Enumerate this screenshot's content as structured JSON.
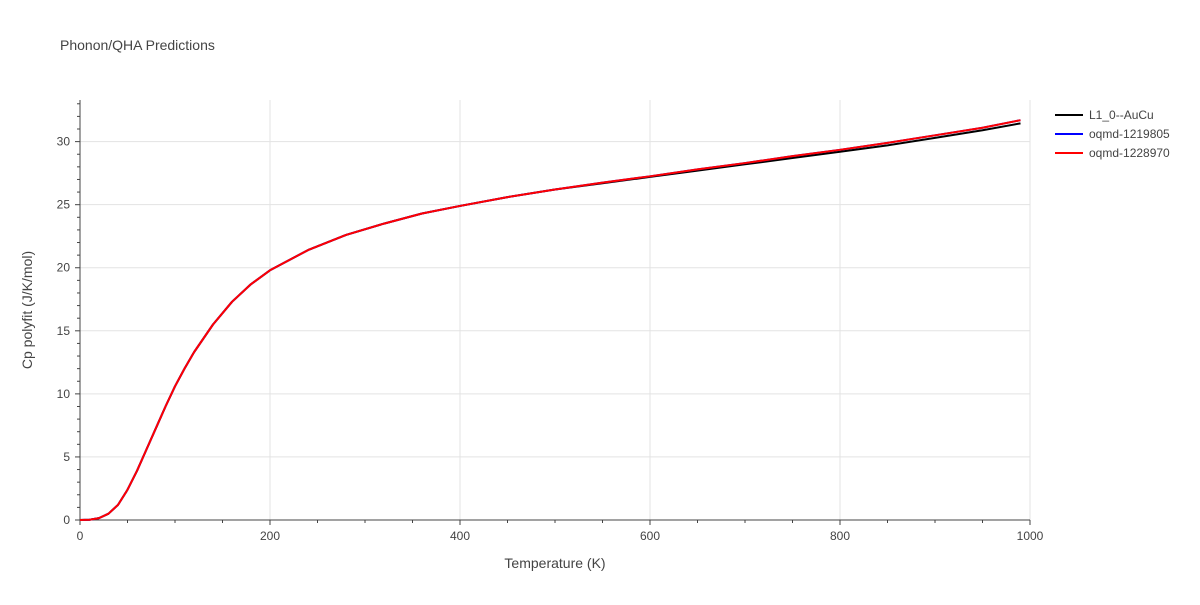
{
  "chart_data": {
    "type": "line",
    "title": "Phonon/QHA Predictions",
    "xlabel": "Temperature (K)",
    "ylabel": "Cp polyfit (J/K/mol)",
    "xlim": [
      0,
      1000
    ],
    "ylim": [
      0,
      33.3
    ],
    "x_ticks": [
      0,
      200,
      400,
      600,
      800,
      1000
    ],
    "y_ticks": [
      0,
      5,
      10,
      15,
      20,
      25,
      30
    ],
    "grid": true,
    "legend_position": "right",
    "x": [
      0,
      10,
      20,
      30,
      40,
      50,
      60,
      70,
      80,
      90,
      100,
      110,
      120,
      140,
      160,
      180,
      200,
      240,
      280,
      320,
      360,
      400,
      450,
      500,
      550,
      600,
      650,
      700,
      750,
      800,
      850,
      900,
      950,
      990
    ],
    "series": [
      {
        "name": "L1_0--AuCu",
        "color": "#000000",
        "values": [
          0,
          0.02,
          0.15,
          0.5,
          1.2,
          2.4,
          3.9,
          5.6,
          7.3,
          9.0,
          10.6,
          12.0,
          13.3,
          15.5,
          17.3,
          18.7,
          19.8,
          21.4,
          22.6,
          23.5,
          24.3,
          24.9,
          25.6,
          26.2,
          26.7,
          27.2,
          27.7,
          28.2,
          28.7,
          29.2,
          29.7,
          30.3,
          30.9,
          31.45
        ]
      },
      {
        "name": "oqmd-1219805",
        "color": "#0000ff",
        "values": [
          0,
          0.02,
          0.15,
          0.5,
          1.2,
          2.4,
          3.9,
          5.6,
          7.3,
          9.0,
          10.6,
          12.0,
          13.3,
          15.5,
          17.3,
          18.7,
          19.8,
          21.4,
          22.6,
          23.5,
          24.3,
          24.9,
          25.6,
          26.2,
          26.75,
          27.25,
          27.8,
          28.3,
          28.85,
          29.35,
          29.9,
          30.5,
          31.1,
          31.7
        ]
      },
      {
        "name": "oqmd-1228970",
        "color": "#ff0000",
        "values": [
          0,
          0.02,
          0.15,
          0.5,
          1.2,
          2.4,
          3.9,
          5.6,
          7.3,
          9.0,
          10.6,
          12.0,
          13.3,
          15.5,
          17.3,
          18.7,
          19.8,
          21.4,
          22.6,
          23.5,
          24.3,
          24.9,
          25.6,
          26.2,
          26.75,
          27.25,
          27.8,
          28.3,
          28.85,
          29.35,
          29.9,
          30.5,
          31.1,
          31.7
        ]
      }
    ]
  }
}
